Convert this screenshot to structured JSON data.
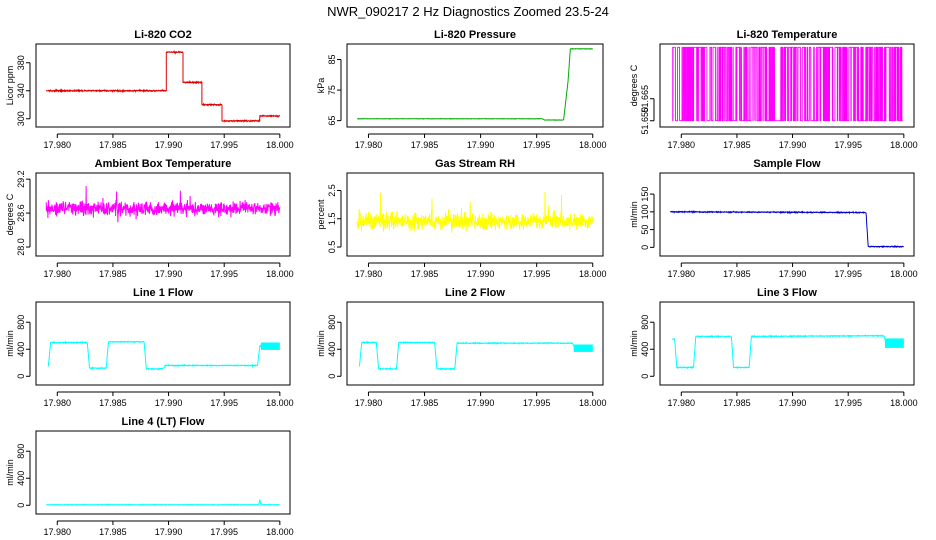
{
  "figure": {
    "title": "NWR_090217  2 Hz Diagnostics Zoomed 23.5-24"
  },
  "chart_data": [
    {
      "id": "co2",
      "type": "line",
      "title": "Li-820 CO2",
      "ylabel": "Licor ppm",
      "color": "#dd0000",
      "noise": 0.8,
      "xlim": [
        17.979,
        18.0
      ],
      "ylim": [
        293,
        402
      ],
      "xticks": [
        17.98,
        17.985,
        17.99,
        17.995,
        18.0
      ],
      "xtick_labels": [
        "17.980",
        "17.985",
        "17.990",
        "17.995",
        "18.000"
      ],
      "yticks": [
        300,
        340,
        380
      ],
      "ytick_labels": [
        "300",
        "340",
        "380"
      ],
      "segments": [
        {
          "x": [
            17.979,
            17.9898
          ],
          "y": [
            340,
            340
          ]
        },
        {
          "x": [
            17.9898,
            17.9898,
            17.9913
          ],
          "y": [
            340,
            395,
            395
          ]
        },
        {
          "x": [
            17.9913,
            17.9913,
            17.993
          ],
          "y": [
            395,
            352,
            352
          ]
        },
        {
          "x": [
            17.993,
            17.993,
            17.9948
          ],
          "y": [
            352,
            320,
            320
          ]
        },
        {
          "x": [
            17.9948,
            17.9948,
            17.9982
          ],
          "y": [
            320,
            297,
            297
          ]
        },
        {
          "x": [
            17.9982,
            17.9982,
            18.0
          ],
          "y": [
            297,
            304,
            304
          ]
        }
      ]
    },
    {
      "id": "pressure",
      "type": "line",
      "title": "Li-820 Pressure",
      "ylabel": "kPa",
      "color": "#00aa00",
      "noise": 0.05,
      "xlim": [
        17.979,
        18.0
      ],
      "ylim": [
        64,
        89
      ],
      "xticks": [
        17.98,
        17.985,
        17.99,
        17.995,
        18.0
      ],
      "xtick_labels": [
        "17.980",
        "17.985",
        "17.990",
        "17.995",
        "18.000"
      ],
      "yticks": [
        65,
        75,
        85
      ],
      "ytick_labels": [
        "65",
        "75",
        "85"
      ],
      "segments": [
        {
          "x": [
            17.979,
            17.9955
          ],
          "y": [
            65.6,
            65.6
          ]
        },
        {
          "x": [
            17.9955,
            17.9957,
            17.9974
          ],
          "y": [
            65.6,
            65.2,
            65.2
          ]
        },
        {
          "x": [
            17.9974,
            17.9978,
            17.998
          ],
          "y": [
            65.2,
            78,
            88.5
          ]
        },
        {
          "x": [
            17.998,
            18.0
          ],
          "y": [
            88.5,
            88.5
          ]
        }
      ]
    },
    {
      "id": "li820temp",
      "type": "line",
      "title": "Li-820 Temperature",
      "ylabel": "degrees C",
      "color": "#ff00ff",
      "noise": 0,
      "xlim": [
        17.979,
        18.0
      ],
      "ylim": [
        51.648,
        51.7
      ],
      "xticks": [
        17.98,
        17.985,
        17.99,
        17.995,
        18.0
      ],
      "xtick_labels": [
        "17.980",
        "17.985",
        "17.990",
        "17.995",
        "18.000"
      ],
      "yticks": [
        51.65,
        51.665
      ],
      "ytick_labels": [
        "51.650",
        "51.665"
      ],
      "binary": {
        "low": 51.65,
        "high": 51.7,
        "seed": 7,
        "n": 2600
      }
    },
    {
      "id": "boxtemp",
      "type": "line",
      "title": "Ambient Box Temperature",
      "ylabel": "degrees C",
      "color": "#ff00ff",
      "noise": 0.11,
      "spikes": 0.05,
      "xlim": [
        17.979,
        18.0
      ],
      "ylim": [
        27.9,
        29.25
      ],
      "xticks": [
        17.98,
        17.985,
        17.99,
        17.995,
        18.0
      ],
      "xtick_labels": [
        "17.980",
        "17.985",
        "17.990",
        "17.995",
        "18.000"
      ],
      "yticks": [
        28.0,
        28.6,
        29.2
      ],
      "ytick_labels": [
        "28.0",
        "28.6",
        "29.2"
      ],
      "segments": [
        {
          "x": [
            17.979,
            18.0
          ],
          "y": [
            28.68,
            28.68
          ]
        }
      ]
    },
    {
      "id": "rh",
      "type": "line",
      "title": "Gas Stream RH",
      "ylabel": "percent",
      "color": "#ffff00",
      "noise": 0.28,
      "spikes": 0.6,
      "xlim": [
        17.979,
        18.0
      ],
      "ylim": [
        0.3,
        3.0
      ],
      "xticks": [
        17.98,
        17.985,
        17.99,
        17.995,
        18.0
      ],
      "xtick_labels": [
        "17.980",
        "17.985",
        "17.990",
        "17.995",
        "18.000"
      ],
      "yticks": [
        0.5,
        1.5,
        2.5
      ],
      "ytick_labels": [
        "0.5",
        "1.5",
        "2.5"
      ],
      "segments": [
        {
          "x": [
            17.979,
            18.0
          ],
          "y": [
            1.4,
            1.4
          ]
        }
      ]
    },
    {
      "id": "sampleflow",
      "type": "line",
      "title": "Sample Flow",
      "ylabel": "ml/min",
      "color": "#0000cc",
      "noise": 1.2,
      "xlim": [
        17.979,
        18.0
      ],
      "ylim": [
        -15,
        200
      ],
      "xticks": [
        17.98,
        17.985,
        17.99,
        17.995,
        18.0
      ],
      "xtick_labels": [
        "17.980",
        "17.985",
        "17.990",
        "17.995",
        "18.000"
      ],
      "yticks": [
        0,
        50,
        100,
        150
      ],
      "ytick_labels": [
        "0",
        "50",
        "100",
        "150"
      ],
      "segments": [
        {
          "x": [
            17.979,
            17.9966
          ],
          "y": [
            100,
            98
          ]
        },
        {
          "x": [
            17.9966,
            17.9968,
            18.0
          ],
          "y": [
            98,
            2,
            2
          ]
        }
      ]
    },
    {
      "id": "line1",
      "type": "line",
      "title": "Line 1 Flow",
      "ylabel": "ml/min",
      "color": "#00ffff",
      "noise": 6,
      "xlim": [
        17.979,
        18.0
      ],
      "ylim": [
        -80,
        1050
      ],
      "xticks": [
        17.98,
        17.985,
        17.99,
        17.995,
        18.0
      ],
      "xtick_labels": [
        "17.980",
        "17.985",
        "17.990",
        "17.995",
        "18.000"
      ],
      "yticks": [
        0,
        400,
        800
      ],
      "ytick_labels": [
        "0",
        "400",
        "800"
      ],
      "segments": [
        {
          "x": [
            17.9792,
            17.9794,
            17.9827
          ],
          "y": [
            150,
            500,
            500
          ]
        },
        {
          "x": [
            17.9827,
            17.9829,
            17.9844
          ],
          "y": [
            500,
            120,
            120
          ]
        },
        {
          "x": [
            17.9844,
            17.9846,
            17.9878
          ],
          "y": [
            120,
            510,
            510
          ]
        },
        {
          "x": [
            17.9878,
            17.988,
            17.9895
          ],
          "y": [
            510,
            110,
            110
          ]
        },
        {
          "x": [
            17.9895,
            17.9897,
            17.998
          ],
          "y": [
            110,
            160,
            160
          ]
        },
        {
          "x": [
            17.998,
            17.9982,
            18.0
          ],
          "y": [
            160,
            450,
            450
          ]
        }
      ],
      "bands": [
        {
          "x": [
            17.9983,
            18.0
          ],
          "y": [
            390,
            500
          ]
        }
      ]
    },
    {
      "id": "line2",
      "type": "line",
      "title": "Line 2 Flow",
      "ylabel": "ml/min",
      "color": "#00ffff",
      "noise": 6,
      "xlim": [
        17.979,
        18.0
      ],
      "ylim": [
        -80,
        1050
      ],
      "xticks": [
        17.98,
        17.985,
        17.99,
        17.995,
        18.0
      ],
      "xtick_labels": [
        "17.980",
        "17.985",
        "17.990",
        "17.995",
        "18.000"
      ],
      "yticks": [
        0,
        400,
        800
      ],
      "ytick_labels": [
        "0",
        "400",
        "800"
      ],
      "segments": [
        {
          "x": [
            17.9792,
            17.9794,
            17.9807
          ],
          "y": [
            150,
            500,
            500
          ]
        },
        {
          "x": [
            17.9807,
            17.9809,
            17.9825
          ],
          "y": [
            500,
            110,
            110
          ]
        },
        {
          "x": [
            17.9825,
            17.9827,
            17.9859
          ],
          "y": [
            110,
            500,
            500
          ]
        },
        {
          "x": [
            17.9859,
            17.9861,
            17.9877
          ],
          "y": [
            500,
            110,
            110
          ]
        },
        {
          "x": [
            17.9877,
            17.9879,
            17.9982
          ],
          "y": [
            110,
            490,
            490
          ]
        },
        {
          "x": [
            17.9982,
            17.9984,
            18.0
          ],
          "y": [
            490,
            420,
            420
          ]
        }
      ],
      "bands": [
        {
          "x": [
            17.9983,
            18.0
          ],
          "y": [
            360,
            470
          ]
        }
      ]
    },
    {
      "id": "line3",
      "type": "line",
      "title": "Line 3 Flow",
      "ylabel": "ml/min",
      "color": "#00ffff",
      "noise": 6,
      "xlim": [
        17.979,
        18.0
      ],
      "ylim": [
        -80,
        1050
      ],
      "xticks": [
        17.98,
        17.985,
        17.99,
        17.995,
        18.0
      ],
      "xtick_labels": [
        "17.980",
        "17.985",
        "17.990",
        "17.995",
        "18.000"
      ],
      "yticks": [
        0,
        400,
        800
      ],
      "ytick_labels": [
        "0",
        "400",
        "800"
      ],
      "segments": [
        {
          "x": [
            17.9792,
            17.9794,
            17.9796
          ],
          "y": [
            550,
            550,
            130
          ]
        },
        {
          "x": [
            17.9796,
            17.9811
          ],
          "y": [
            130,
            130
          ]
        },
        {
          "x": [
            17.9811,
            17.9813,
            17.9845
          ],
          "y": [
            130,
            590,
            590
          ]
        },
        {
          "x": [
            17.9845,
            17.9847,
            17.9861
          ],
          "y": [
            590,
            130,
            130
          ]
        },
        {
          "x": [
            17.9861,
            17.9863,
            17.9982
          ],
          "y": [
            130,
            590,
            600
          ]
        },
        {
          "x": [
            17.9982,
            17.9984,
            18.0
          ],
          "y": [
            600,
            500,
            500
          ]
        }
      ],
      "bands": [
        {
          "x": [
            17.9983,
            18.0
          ],
          "y": [
            420,
            560
          ]
        }
      ]
    },
    {
      "id": "line4",
      "type": "line",
      "title": "Line 4 (LT) Flow",
      "ylabel": "ml/min",
      "color": "#00ffff",
      "noise": 3,
      "xlim": [
        17.979,
        18.0
      ],
      "ylim": [
        -80,
        1050
      ],
      "xticks": [
        17.98,
        17.985,
        17.99,
        17.995,
        18.0
      ],
      "xtick_labels": [
        "17.980",
        "17.985",
        "17.990",
        "17.995",
        "18.000"
      ],
      "yticks": [
        0,
        400,
        800
      ],
      "ytick_labels": [
        "0",
        "400",
        "800"
      ],
      "segments": [
        {
          "x": [
            17.979,
            17.9981
          ],
          "y": [
            8,
            8
          ]
        },
        {
          "x": [
            17.9981,
            17.9982,
            17.9983,
            18.0
          ],
          "y": [
            8,
            80,
            8,
            8
          ]
        }
      ]
    }
  ]
}
